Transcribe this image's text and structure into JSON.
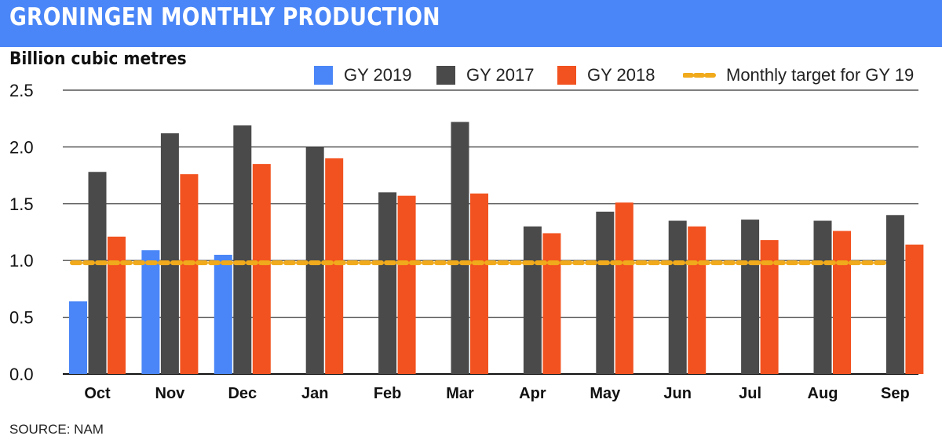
{
  "header": {
    "title": "GRONINGEN MONTHLY PRODUCTION"
  },
  "source": "SOURCE: NAM",
  "colors": {
    "banner": "#4a86f7",
    "gy2019": "#4a86f7",
    "gy2017": "#4a4a4a",
    "gy2018": "#f2521f",
    "target": "#f0aa1b",
    "grid": "#222222"
  },
  "chart_data": {
    "type": "bar",
    "title": "",
    "xlabel": "",
    "ylabel": "Billion cubic metres",
    "ylim": [
      0,
      2.5
    ],
    "yticks": [
      0.0,
      0.5,
      1.0,
      1.5,
      2.0,
      2.5
    ],
    "ytick_labels": [
      "0.0",
      "0.5",
      "1.0",
      "1.5",
      "2.0",
      "2.5"
    ],
    "grid": "horizontal",
    "legend_position": "top-right",
    "categories": [
      "Oct",
      "Nov",
      "Dec",
      "Jan",
      "Feb",
      "Mar",
      "Apr",
      "May",
      "Jun",
      "Jul",
      "Aug",
      "Sep"
    ],
    "series": [
      {
        "name": "GY 2019",
        "color": "#4a86f7",
        "values": [
          0.64,
          1.09,
          1.05,
          null,
          null,
          null,
          null,
          null,
          null,
          null,
          null,
          null
        ]
      },
      {
        "name": "GY 2017",
        "color": "#4a4a4a",
        "values": [
          1.78,
          2.12,
          2.19,
          2.0,
          1.6,
          2.22,
          1.3,
          1.43,
          1.35,
          1.36,
          1.35,
          1.4
        ]
      },
      {
        "name": "GY 2018",
        "color": "#f2521f",
        "values": [
          1.21,
          1.76,
          1.85,
          1.9,
          1.57,
          1.59,
          1.24,
          1.51,
          1.3,
          1.18,
          1.26,
          1.14
        ]
      }
    ],
    "target": {
      "name": "Monthly target for GY 19",
      "value": 0.98,
      "color": "#f0aa1b",
      "style": "dashed"
    }
  }
}
